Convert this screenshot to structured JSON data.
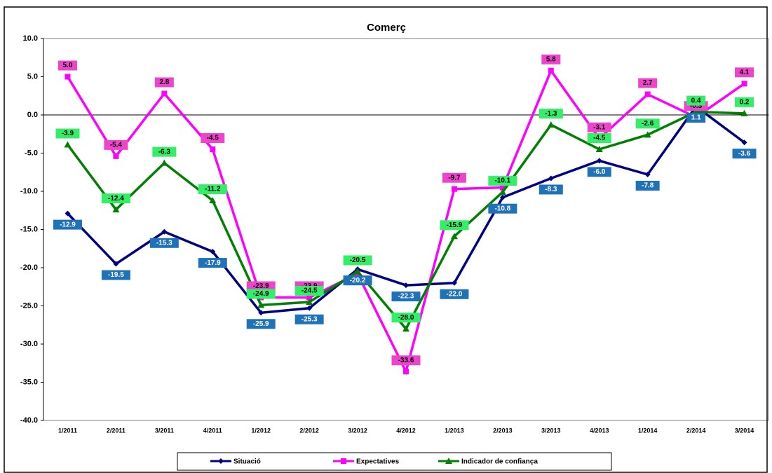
{
  "chart_data": {
    "type": "line",
    "title": "Comerç",
    "categories": [
      "1/2011",
      "2/2011",
      "3/2011",
      "4/2011",
      "1/2012",
      "2/2012",
      "3/2012",
      "4/2012",
      "1/2013",
      "2/2013",
      "3/2013",
      "4/2013",
      "1/2014",
      "2/2014",
      "3/2014"
    ],
    "series": [
      {
        "name": "Situació",
        "color": "#000080",
        "marker": "diamond",
        "label_color": "#1f72b8",
        "values": [
          -12.9,
          -19.5,
          -15.3,
          -17.9,
          -25.9,
          -25.3,
          -20.2,
          -22.3,
          -22.0,
          -10.8,
          -8.3,
          -6.0,
          -7.8,
          1.1,
          -3.6
        ],
        "value_labels": [
          "-12.9",
          "-19.5",
          "-15.3",
          "-17.9",
          "-25.9",
          "-25.3",
          "-20.2",
          "-22.3",
          "-22.0",
          "-10.8",
          "-8.3",
          "-6.0",
          "-7.8",
          "1.1",
          "-3.6"
        ]
      },
      {
        "name": "Expectatives",
        "color": "#ff00ff",
        "marker": "square",
        "label_color": "#ee44cc",
        "values": [
          5.0,
          -5.4,
          2.8,
          -4.5,
          -23.9,
          -23.9,
          -20.8,
          -33.6,
          -9.7,
          -9.5,
          5.8,
          -3.1,
          2.7,
          -0.3,
          4.1
        ],
        "value_labels": [
          "5.0",
          "-5.4",
          "2.8",
          "-4.5",
          "-23.9",
          "-23.9",
          null,
          "-33.6",
          "-9.7",
          null,
          "5.8",
          "-3.1",
          "2.7",
          "-0.3",
          "4.1"
        ]
      },
      {
        "name": "Indicador de confiança",
        "color": "#008000",
        "marker": "triangle",
        "label_color": "#33ee66",
        "values": [
          -3.9,
          -12.4,
          -6.3,
          -11.2,
          -24.9,
          -24.5,
          -20.5,
          -28.0,
          -15.9,
          -10.1,
          -1.3,
          -4.5,
          -2.6,
          0.4,
          0.2
        ],
        "value_labels": [
          "-3.9",
          "-12.4",
          "-6.3",
          "-11.2",
          "-24.9",
          "-24.5",
          "-20.5",
          "-28.0",
          "-15.9",
          "-10.1",
          "-1.3",
          "-4.5",
          "-2.6",
          "0.4",
          "0.2"
        ]
      }
    ],
    "ylim": [
      -40,
      10
    ],
    "yticks": [
      {
        "value": -40,
        "label": "-40.0"
      },
      {
        "value": -35,
        "label": "-35.0"
      },
      {
        "value": -30,
        "label": "-30.0"
      },
      {
        "value": -25,
        "label": "-25.0"
      },
      {
        "value": -20,
        "label": "-20.0"
      },
      {
        "value": -15,
        "label": "-15.0"
      },
      {
        "value": -10,
        "label": "-10.0"
      },
      {
        "value": -5,
        "label": "-5.0"
      },
      {
        "value": 0,
        "label": "0.0"
      },
      {
        "value": 5,
        "label": "5.0"
      },
      {
        "value": 10,
        "label": "10.0"
      }
    ],
    "legend": "bottom"
  }
}
